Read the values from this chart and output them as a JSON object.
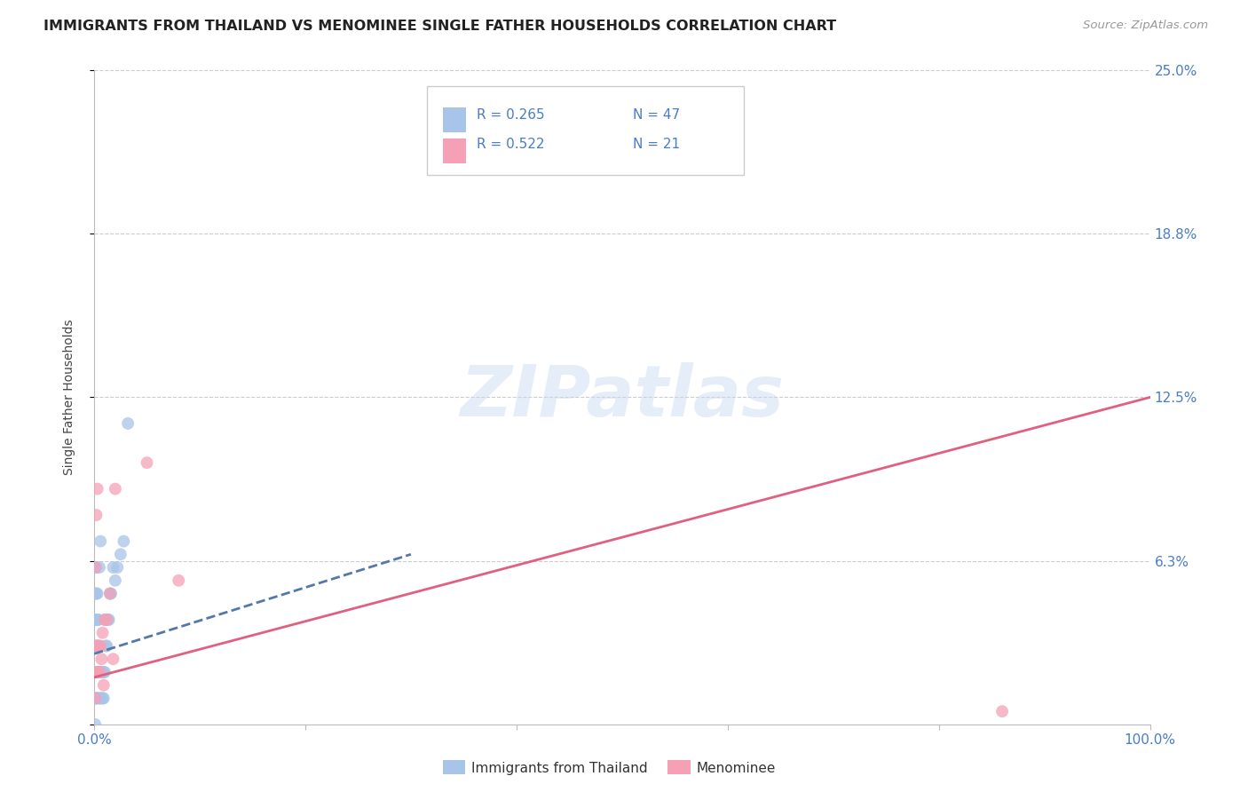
{
  "title": "IMMIGRANTS FROM THAILAND VS MENOMINEE SINGLE FATHER HOUSEHOLDS CORRELATION CHART",
  "source": "Source: ZipAtlas.com",
  "ylabel": "Single Father Households",
  "xlim": [
    0.0,
    1.0
  ],
  "ylim": [
    0.0,
    0.25
  ],
  "ytick_vals": [
    0.0,
    0.0625,
    0.125,
    0.1875,
    0.25
  ],
  "ytick_labels": [
    "",
    "6.3%",
    "12.5%",
    "18.8%",
    "25.0%"
  ],
  "xtick_vals": [
    0.0,
    0.2,
    0.4,
    0.6,
    0.8,
    1.0
  ],
  "xtick_labels": [
    "0.0%",
    "",
    "",
    "",
    "",
    "100.0%"
  ],
  "background_color": "#ffffff",
  "watermark_text": "ZIPatlas",
  "legend_r1": "R = 0.265",
  "legend_n1": "N = 47",
  "legend_r2": "R = 0.522",
  "legend_n2": "N = 21",
  "blue_color": "#a8c4e8",
  "pink_color": "#f5a0b5",
  "trendline_blue_color": "#5577aa",
  "trendline_pink_color": "#e06080",
  "grid_color": "#cccccc",
  "grid_linestyle": "--",
  "tick_color": "#4a7cc7",
  "title_color": "#222222",
  "source_color": "#999999",
  "blue_scatter_x": [
    0.001,
    0.001,
    0.001,
    0.001,
    0.001,
    0.001,
    0.002,
    0.002,
    0.002,
    0.002,
    0.002,
    0.002,
    0.003,
    0.003,
    0.003,
    0.003,
    0.003,
    0.004,
    0.004,
    0.004,
    0.004,
    0.005,
    0.005,
    0.005,
    0.006,
    0.006,
    0.006,
    0.007,
    0.007,
    0.008,
    0.008,
    0.009,
    0.009,
    0.01,
    0.01,
    0.011,
    0.012,
    0.013,
    0.014,
    0.015,
    0.016,
    0.018,
    0.02,
    0.022,
    0.025,
    0.028,
    0.032
  ],
  "blue_scatter_y": [
    0.01,
    0.02,
    0.03,
    0.04,
    0.05,
    0.0,
    0.01,
    0.02,
    0.03,
    0.04,
    0.05,
    0.06,
    0.01,
    0.02,
    0.03,
    0.04,
    0.05,
    0.01,
    0.02,
    0.03,
    0.04,
    0.01,
    0.02,
    0.06,
    0.01,
    0.02,
    0.07,
    0.01,
    0.02,
    0.01,
    0.02,
    0.01,
    0.02,
    0.02,
    0.04,
    0.03,
    0.03,
    0.04,
    0.04,
    0.05,
    0.05,
    0.06,
    0.055,
    0.06,
    0.065,
    0.07,
    0.115
  ],
  "pink_scatter_x": [
    0.001,
    0.001,
    0.002,
    0.002,
    0.003,
    0.003,
    0.004,
    0.004,
    0.005,
    0.006,
    0.007,
    0.008,
    0.009,
    0.01,
    0.012,
    0.015,
    0.018,
    0.02,
    0.05,
    0.08,
    0.86
  ],
  "pink_scatter_y": [
    0.01,
    0.06,
    0.02,
    0.08,
    0.03,
    0.09,
    0.02,
    0.03,
    0.02,
    0.03,
    0.025,
    0.035,
    0.015,
    0.04,
    0.04,
    0.05,
    0.025,
    0.09,
    0.1,
    0.055,
    0.005
  ],
  "blue_trend_x": [
    0.0,
    0.3
  ],
  "blue_trend_y": [
    0.027,
    0.065
  ],
  "pink_trend_x": [
    0.0,
    1.0
  ],
  "pink_trend_y": [
    0.018,
    0.125
  ],
  "bottom_legend_blue_label": "Immigrants from Thailand",
  "bottom_legend_pink_label": "Menominee"
}
